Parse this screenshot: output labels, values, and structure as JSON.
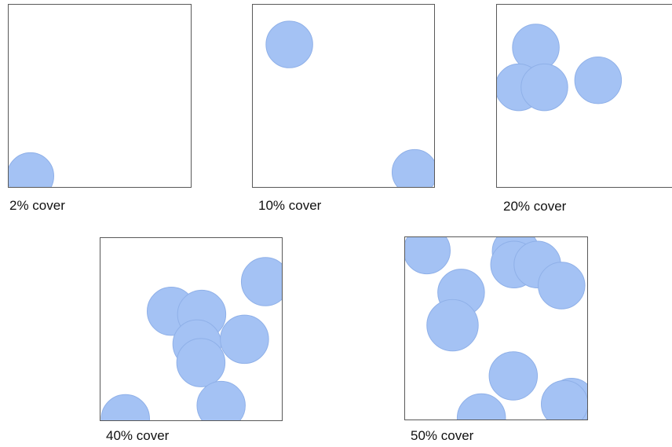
{
  "colors": {
    "circle_fill": "#a4c2f4",
    "circle_stroke": "#8fb0e8",
    "panel_border": "#595959"
  },
  "panels": [
    {
      "caption": "2% cover"
    },
    {
      "caption": "10% cover"
    },
    {
      "caption": "20% cover"
    },
    {
      "caption": "40% cover"
    },
    {
      "caption": "50% cover"
    }
  ]
}
